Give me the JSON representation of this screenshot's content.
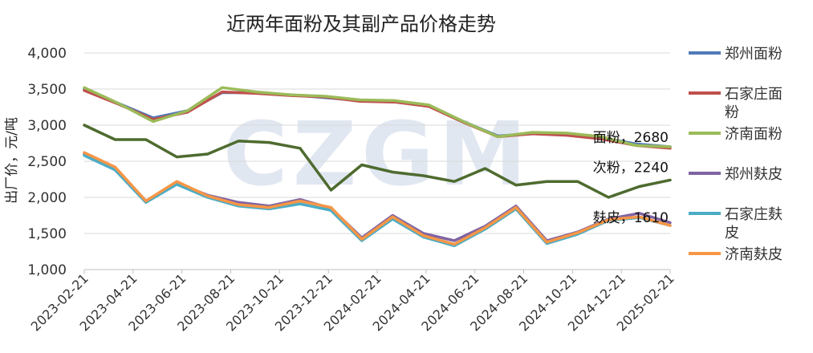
{
  "chart_data": {
    "type": "line",
    "title": "近两年面粉及其副产品价格走势",
    "ylabel": "出厂价，元/吨",
    "xlabel": "",
    "ylim": [
      1000,
      4000
    ],
    "yticks": [
      "1,000",
      "1,500",
      "2,000",
      "2,500",
      "3,000",
      "3,500",
      "4,000"
    ],
    "yticks_values": [
      1000,
      1500,
      2000,
      2500,
      3000,
      3500,
      4000
    ],
    "xticks": [
      "2023-02-21",
      "2023-04-21",
      "2023-06-21",
      "2023-08-21",
      "2023-10-21",
      "2023-12-21",
      "2024-02-21",
      "2024-04-21",
      "2024-06-21",
      "2024-08-21",
      "2024-10-21",
      "2024-12-21",
      "2025-02-21"
    ],
    "xticks_index": [
      0,
      2,
      4,
      6,
      8,
      10,
      12,
      14,
      16,
      18,
      20,
      22,
      24
    ],
    "x_points": 25,
    "grid": "horizontal",
    "legend_position": "right",
    "watermark": "CZGM",
    "series": [
      {
        "name": "郑州面粉",
        "color": "#4f7ab8",
        "values": [
          3500,
          3300,
          3100,
          3200,
          3450,
          3450,
          3420,
          3380,
          3340,
          3330,
          3270,
          3050,
          2850,
          2880,
          2880,
          2830,
          2740,
          2700
        ]
      },
      {
        "name": "石家庄面粉",
        "color": "#c0504d",
        "values": [
          3480,
          3290,
          3080,
          3180,
          3460,
          3440,
          3410,
          3390,
          3330,
          3320,
          3260,
          3040,
          2840,
          2880,
          2860,
          2810,
          2720,
          2680
        ]
      },
      {
        "name": "济南面粉",
        "color": "#9bbb59",
        "values": [
          3520,
          3300,
          3050,
          3200,
          3520,
          3460,
          3420,
          3400,
          3350,
          3340,
          3280,
          3050,
          2840,
          2900,
          2890,
          2840,
          2720,
          2700
        ]
      },
      {
        "name": "郑州麸皮",
        "color": "#8064a2",
        "values": [
          2600,
          2400,
          1950,
          2200,
          2030,
          1930,
          1880,
          1970,
          1850,
          1440,
          1750,
          1500,
          1400,
          1600,
          1880,
          1400,
          1520,
          1700,
          1780,
          1650
        ]
      },
      {
        "name": "石家庄麸皮",
        "color": "#4bacc6",
        "values": [
          2580,
          2380,
          1930,
          2180,
          2000,
          1880,
          1840,
          1910,
          1820,
          1400,
          1700,
          1450,
          1330,
          1560,
          1840,
          1360,
          1490,
          1680,
          1720,
          1610
        ]
      },
      {
        "name": "济南麸皮",
        "color": "#f79646",
        "values": [
          2620,
          2420,
          1950,
          2220,
          2020,
          1900,
          1860,
          1950,
          1860,
          1420,
          1730,
          1470,
          1350,
          1580,
          1860,
          1380,
          1510,
          1690,
          1730,
          1610
        ]
      },
      {
        "name": "次粉",
        "color": "#4e6b2f",
        "values": [
          3000,
          2800,
          2800,
          2560,
          2600,
          2780,
          2760,
          2680,
          2100,
          2450,
          2350,
          2300,
          2220,
          2400,
          2170,
          2220,
          2220,
          2000,
          2150,
          2240
        ]
      }
    ],
    "annotations": [
      {
        "text": "面粉，2680",
        "value": 2680
      },
      {
        "text": "次粉，2240",
        "value": 2240
      },
      {
        "text": "麸皮，1610",
        "value": 1610
      }
    ]
  }
}
